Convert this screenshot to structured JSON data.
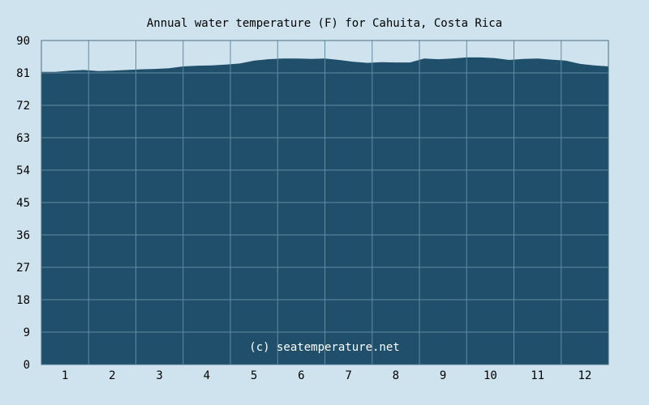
{
  "chart_data": {
    "type": "area",
    "title": "Annual water temperature (F) for Cahuita, Costa Rica",
    "watermark": "(c) seatemperature.net",
    "xlabel": "",
    "ylabel": "",
    "x_ticks": [
      "1",
      "2",
      "3",
      "4",
      "5",
      "6",
      "7",
      "8",
      "9",
      "10",
      "11",
      "12"
    ],
    "y_ticks": [
      0,
      9,
      18,
      27,
      36,
      45,
      54,
      63,
      72,
      81,
      90
    ],
    "ylim": [
      0,
      90
    ],
    "xlim": [
      0,
      12
    ],
    "grid": true,
    "colors": {
      "background": "#cfe3ee",
      "plot_bg": "#cfe3ee",
      "fill": "#1f4f6a",
      "grid": "#5f8ba3",
      "border": "#4a6f85"
    },
    "series": [
      {
        "x": [
          0,
          0.3,
          0.6,
          0.9,
          1.2,
          1.5,
          1.8,
          2.1,
          2.4,
          2.7,
          3.0,
          3.3,
          3.6,
          3.9,
          4.2,
          4.5,
          4.8,
          5.1,
          5.4,
          5.7,
          6.0,
          6.3,
          6.6,
          6.9,
          7.2,
          7.5,
          7.8,
          8.1,
          8.4,
          8.7,
          9.0,
          9.3,
          9.6,
          9.9,
          10.2,
          10.5,
          10.8,
          11.1,
          11.4,
          11.7,
          12.0
        ],
        "values": [
          81.3,
          81.3,
          81.6,
          81.8,
          81.5,
          81.6,
          81.8,
          82.0,
          82.1,
          82.3,
          82.8,
          83.0,
          83.1,
          83.3,
          83.6,
          84.4,
          84.8,
          85.0,
          85.0,
          84.9,
          85.0,
          84.6,
          84.1,
          83.8,
          84.0,
          83.9,
          83.9,
          85.0,
          84.8,
          85.0,
          85.3,
          85.3,
          85.1,
          84.6,
          84.9,
          85.0,
          84.7,
          84.4,
          83.5,
          83.1,
          82.8
        ]
      }
    ]
  }
}
